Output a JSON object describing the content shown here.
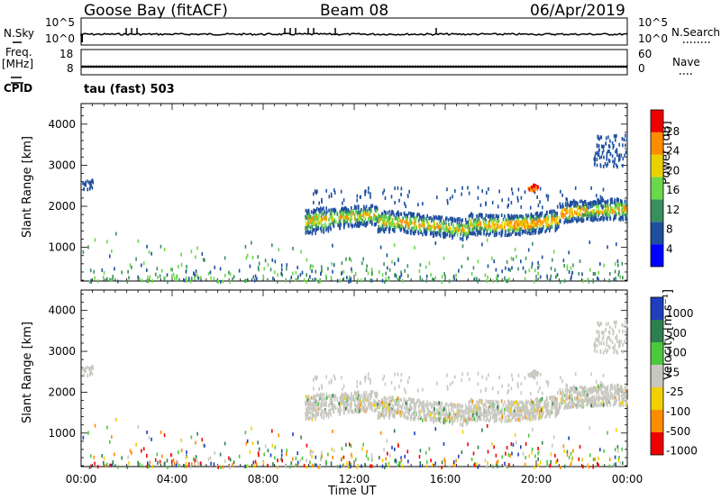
{
  "header": {
    "radar": "Goose Bay (fitACF)",
    "beam": "Beam 08",
    "date": "06/Apr/2019"
  },
  "strip_labels": {
    "nsky": "N.Sky",
    "nsearch": "N.Search",
    "freq_top": "Freq.",
    "freq_unit": "[MHz]",
    "cpid": "CPID",
    "nave": "Nave",
    "nsky_ticks": [
      "10^5",
      "10^0"
    ],
    "freq_ticks": [
      "8",
      "18"
    ],
    "nave_ticks": [
      "60",
      "0"
    ],
    "cpid_text": "tau (fast) 503"
  },
  "chart_data": [
    {
      "type": "heatmap",
      "name": "power",
      "ylabel": "Slant Range [km]",
      "xlabel": "",
      "xlim": [
        0,
        24
      ],
      "ylim": [
        180,
        4500
      ],
      "y_ticks": [
        1000,
        2000,
        3000,
        4000
      ],
      "colorbar": {
        "label": "Power [dB]",
        "ticks": [
          "4",
          "8",
          "12",
          "16",
          "20",
          "24",
          "28"
        ],
        "colors": [
          "#0000ff",
          "#1f4f9f",
          "#3a8f5f",
          "#6ad84a",
          "#e8d200",
          "#ff8c00",
          "#ee0000"
        ]
      },
      "features": [
        {
          "x_start": 9.8,
          "x_end": 24,
          "range_km": 1700,
          "level": "12-24 dB"
        },
        {
          "x_start": 23.0,
          "x_end": 24,
          "range_km": 3500,
          "level": "4-8 dB"
        },
        {
          "x_start": 0.0,
          "x_end": 0.5,
          "range_km": 2550,
          "level": "4-8 dB"
        }
      ]
    },
    {
      "type": "heatmap",
      "name": "velocity",
      "ylabel": "Slant Range [km]",
      "xlabel": "Time UT",
      "xlim": [
        0,
        24
      ],
      "ylim": [
        180,
        4500
      ],
      "y_ticks": [
        1000,
        2000,
        3000,
        4000
      ],
      "colorbar": {
        "label": "Velocity [m s⁻¹]",
        "ticks": [
          "1000",
          "500",
          "100",
          "25",
          "-25",
          "-100",
          "-500",
          "-1000"
        ],
        "colors": [
          "#1f3fbf",
          "#2e7f4f",
          "#4cc83c",
          "#c8c8c0",
          "#f0d000",
          "#ff8c00",
          "#ee0000"
        ]
      },
      "x_ticks": [
        "00:00",
        "04:00",
        "08:00",
        "12:00",
        "16:00",
        "20:00",
        "00:00"
      ]
    }
  ],
  "footer": {
    "xlabel": "Time UT"
  }
}
